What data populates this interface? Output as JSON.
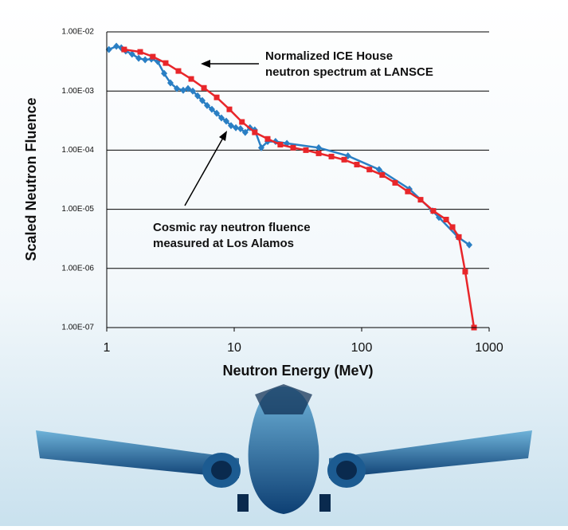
{
  "chart_data": {
    "type": "line",
    "xlabel": "Neutron Energy (MeV)",
    "ylabel": "Scaled Neutron Fluence",
    "xscale": "log",
    "yscale": "log",
    "xlim": [
      1,
      1000
    ],
    "xticks": [
      1,
      10,
      100,
      1000
    ],
    "ylim": [
      1e-07,
      0.01
    ],
    "yticks": [
      {
        "value": 1e-07,
        "label": "1.00E-07"
      },
      {
        "value": 1e-06,
        "label": "1.00E-06"
      },
      {
        "value": 1e-05,
        "label": "1.00E-05"
      },
      {
        "value": 0.0001,
        "label": "1.00E-04"
      },
      {
        "value": 0.001,
        "label": "1.00E-03"
      },
      {
        "value": 0.01,
        "label": "1.00E-02"
      }
    ],
    "grid": true,
    "annotations": [
      {
        "lines": [
          "Normalized ICE House",
          "neutron spectrum at LANSCE"
        ]
      },
      {
        "lines": [
          "Cosmic ray neutron fluence",
          "measured at Los Alamos"
        ]
      }
    ],
    "series": [
      {
        "color": "#2a7fc4",
        "marker": "diamond",
        "x": [
          1.04,
          1.19,
          1.3,
          1.41,
          1.58,
          1.78,
          2.0,
          2.24,
          2.51,
          2.82,
          3.16,
          3.55,
          3.98,
          4.34,
          4.73,
          5.16,
          5.62,
          6.13,
          6.68,
          7.29,
          7.94,
          8.66,
          9.44,
          10.3,
          11.2,
          12.2,
          13.3,
          14.5,
          16.3,
          18.3,
          21.1,
          25.9,
          46,
          78,
          137,
          237,
          360,
          404,
          570,
          698
        ],
        "values": [
          0.00504,
          0.00571,
          0.00537,
          0.00474,
          0.00419,
          0.00358,
          0.00337,
          0.00347,
          0.00316,
          0.00198,
          0.00137,
          0.0011,
          0.00103,
          0.0011,
          0.001,
          0.00083,
          0.00069,
          0.00057,
          0.00049,
          0.00042,
          0.00035,
          0.00031,
          0.00026,
          0.00024,
          0.00023,
          0.0002,
          0.00024,
          0.00022,
          0.00011,
          0.00014,
          0.00014,
          0.00013,
          0.00011,
          8e-05,
          4.7e-05,
          2.2e-05,
          9.4e-06,
          7.3e-06,
          3.4e-06,
          2.5e-06
        ]
      },
      {
        "color": "#e8262a",
        "marker": "square",
        "x": [
          1.37,
          1.83,
          2.3,
          2.9,
          3.65,
          4.6,
          5.79,
          7.29,
          9.17,
          11.5,
          14.5,
          18.3,
          23.0,
          29.0,
          36.5,
          46,
          57.9,
          72.9,
          91.7,
          115,
          145,
          183,
          230,
          290,
          365,
          460,
          516,
          579,
          649,
          761
        ],
        "values": [
          0.00504,
          0.00459,
          0.00381,
          0.00297,
          0.00218,
          0.0016,
          0.00113,
          0.00078,
          0.00049,
          0.0003,
          0.0002,
          0.000155,
          0.000124,
          0.00011,
          0.0001,
          8.83e-05,
          7.8e-05,
          6.9e-05,
          5.7e-05,
          4.7e-05,
          3.8e-05,
          2.8e-05,
          2e-05,
          1.45e-05,
          9.4e-06,
          6.7e-06,
          5e-06,
          3.4e-06,
          8.8e-07,
          1e-07
        ]
      }
    ]
  }
}
